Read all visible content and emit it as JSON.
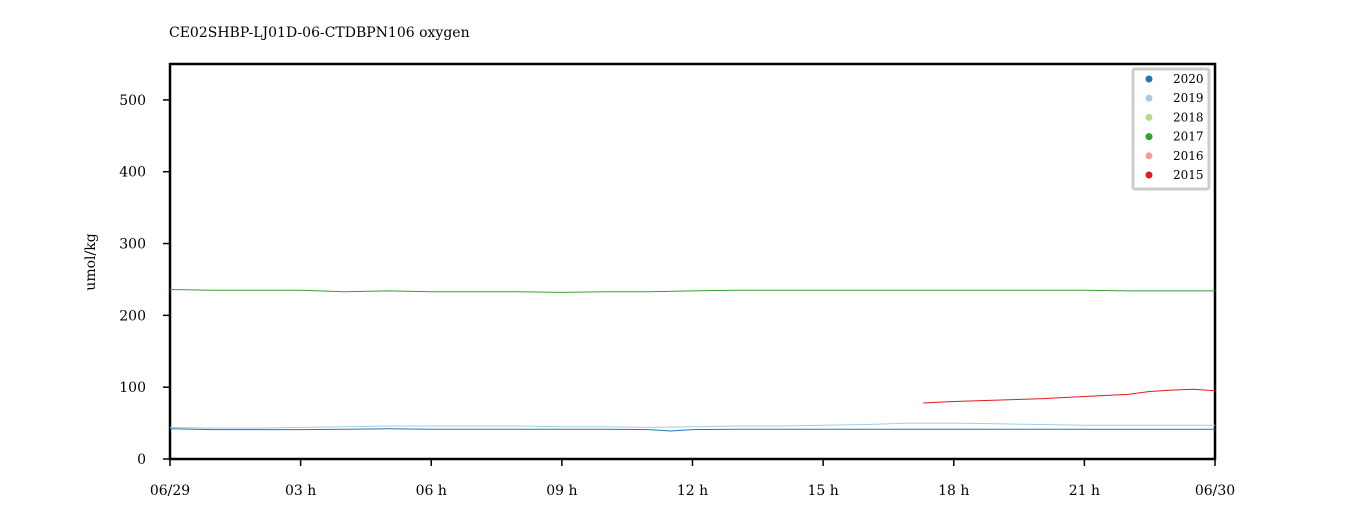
{
  "chart_data": {
    "type": "line",
    "title": "CE02SHBP-LJ01D-06-CTDBPN106 oxygen",
    "xlabel": "",
    "ylabel": "umol/kg",
    "xlim": [
      0,
      24
    ],
    "ylim": [
      0,
      550
    ],
    "x_unit": "hours since 06/29 00:00",
    "x_ticks": [
      {
        "value": 0,
        "label": "06/29"
      },
      {
        "value": 3,
        "label": "03 h"
      },
      {
        "value": 6,
        "label": "06 h"
      },
      {
        "value": 9,
        "label": "09 h"
      },
      {
        "value": 12,
        "label": "12 h"
      },
      {
        "value": 15,
        "label": "15 h"
      },
      {
        "value": 18,
        "label": "18 h"
      },
      {
        "value": 21,
        "label": "21 h"
      },
      {
        "value": 24,
        "label": "06/30"
      }
    ],
    "y_ticks": [
      0,
      100,
      200,
      300,
      400,
      500
    ],
    "grid": false,
    "legend_position": "top-right",
    "series": [
      {
        "name": "2020",
        "color": "#1f78b4",
        "x": [
          0,
          1,
          2,
          3,
          4,
          5,
          6,
          7,
          8,
          9,
          10,
          11,
          11.5,
          12,
          13,
          14,
          15,
          16,
          17,
          18,
          19,
          20,
          21,
          22,
          23,
          24
        ],
        "y": [
          42,
          41,
          41,
          41,
          41.5,
          42,
          41.5,
          41.5,
          41.5,
          41.5,
          41.5,
          41,
          39,
          41,
          41.5,
          41.5,
          41.5,
          41.5,
          41.5,
          41.5,
          41.5,
          41.5,
          41.5,
          41.5,
          41.5,
          41.5
        ]
      },
      {
        "name": "2019",
        "color": "#a6cee3",
        "x": [
          0,
          1,
          2,
          3,
          4,
          5,
          6,
          7,
          8,
          9,
          10,
          11,
          12,
          13,
          14,
          15,
          16,
          17,
          18,
          19,
          20,
          21,
          22,
          23,
          24
        ],
        "y": [
          44,
          43,
          43,
          44,
          45,
          46,
          46,
          46,
          46,
          45,
          45,
          44,
          45,
          46,
          46,
          47,
          48,
          50,
          50,
          49,
          48,
          47,
          47,
          47,
          47
        ]
      },
      {
        "name": "2018",
        "color": "#b2df8a",
        "x": [],
        "y": []
      },
      {
        "name": "2017",
        "color": "#33a02c",
        "x": [
          0,
          1,
          2,
          3,
          4,
          5,
          6,
          7,
          8,
          9,
          10,
          11,
          12,
          13,
          14,
          15,
          16,
          17,
          18,
          19,
          20,
          21,
          22,
          23,
          24
        ],
        "y": [
          236,
          235,
          235,
          235,
          233,
          234,
          233,
          233,
          233,
          232,
          233,
          233,
          234,
          235,
          235,
          235,
          235,
          235,
          235,
          235,
          235,
          235,
          234,
          234,
          234
        ]
      },
      {
        "name": "2016",
        "color": "#fb9a99",
        "x": [],
        "y": []
      },
      {
        "name": "2015",
        "color": "#e31a1c",
        "x": [
          17.3,
          18,
          19,
          20,
          21,
          22,
          22.5,
          23,
          23.5,
          24
        ],
        "y": [
          78,
          80,
          82,
          84,
          87,
          90,
          94,
          96,
          97,
          95
        ]
      }
    ]
  }
}
